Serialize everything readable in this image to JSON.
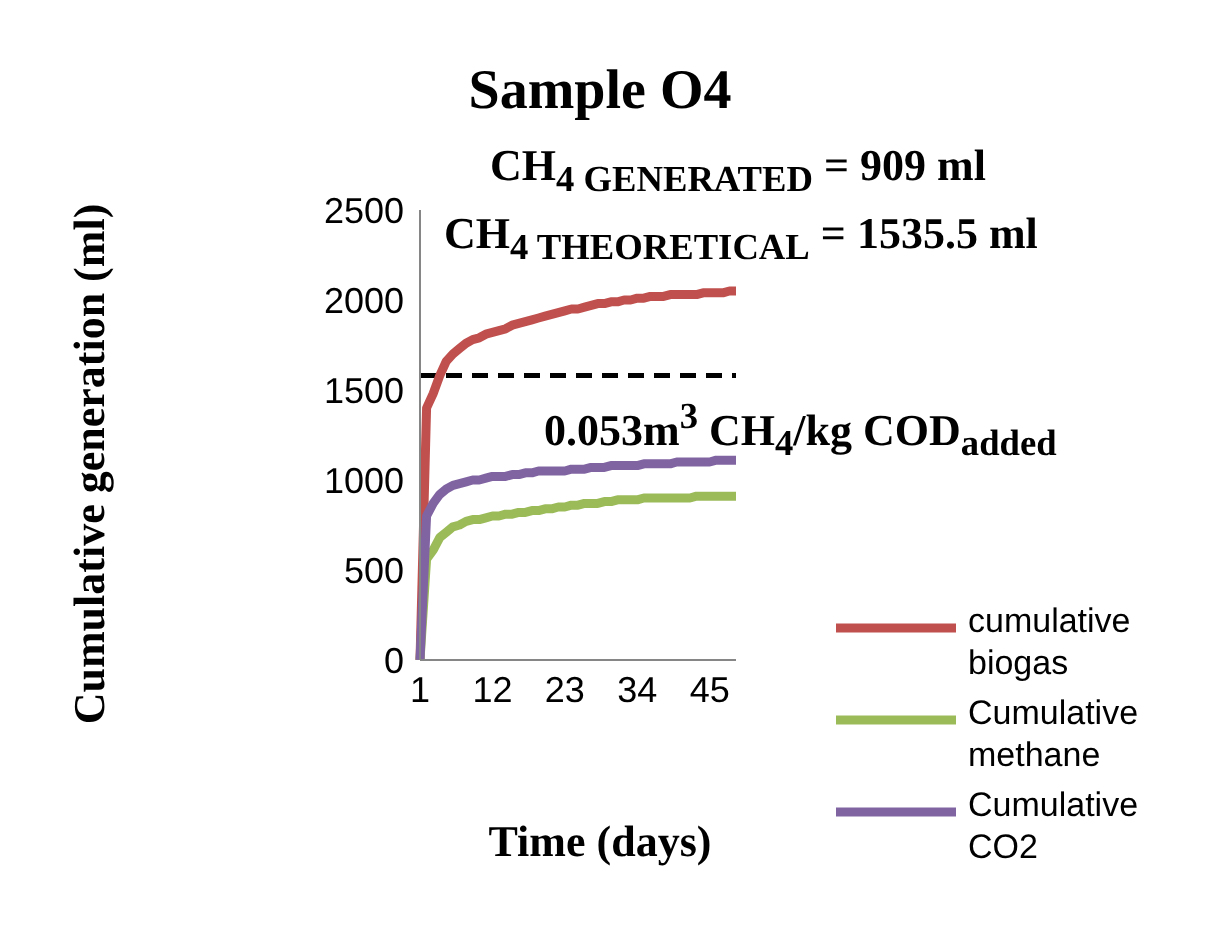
{
  "chart_data": {
    "type": "line",
    "title": "Sample O4",
    "xlabel": "Time (days)",
    "ylabel": "Cumulative generation (ml)",
    "annotations": [
      "CH$_{4 GENERATED}$ = 909 ml",
      "CH$_{4 THEORETICAL}$ = 1535.5 ml",
      "0.053m$^{3}$ CH$_{4}$/kg COD$_{added}$"
    ],
    "categories": [
      "1",
      null,
      null,
      null,
      null,
      null,
      null,
      null,
      null,
      null,
      null,
      "12",
      null,
      null,
      null,
      null,
      null,
      null,
      null,
      null,
      null,
      null,
      "23",
      null,
      null,
      null,
      null,
      null,
      null,
      null,
      null,
      null,
      null,
      "34",
      null,
      null,
      null,
      null,
      null,
      null,
      null,
      null,
      null,
      null,
      "45",
      null,
      null,
      null,
      null
    ],
    "series": [
      {
        "name": "cumulative biogas",
        "color": "#c0504d",
        "values": [
          0,
          1400,
          1480,
          1580,
          1660,
          1700,
          1730,
          1760,
          1780,
          1790,
          1810,
          1820,
          1830,
          1840,
          1860,
          1870,
          1880,
          1890,
          1900,
          1910,
          1920,
          1930,
          1940,
          1950,
          1950,
          1960,
          1970,
          1980,
          1980,
          1990,
          1990,
          2000,
          2000,
          2010,
          2010,
          2020,
          2020,
          2020,
          2030,
          2030,
          2030,
          2030,
          2030,
          2040,
          2040,
          2040,
          2040,
          2050,
          2050
        ]
      },
      {
        "name": "Cumulative methane",
        "color": "#9bbb59",
        "values": [
          0,
          560,
          610,
          680,
          710,
          740,
          750,
          770,
          780,
          780,
          790,
          800,
          800,
          810,
          810,
          820,
          820,
          830,
          830,
          840,
          840,
          850,
          850,
          860,
          860,
          870,
          870,
          870,
          880,
          880,
          890,
          890,
          890,
          890,
          900,
          900,
          900,
          900,
          900,
          900,
          900,
          900,
          910,
          910,
          910,
          910,
          910,
          910,
          910
        ]
      },
      {
        "name": "Cumulative CO2",
        "color": "#8064a2",
        "values": [
          0,
          800,
          870,
          920,
          950,
          970,
          980,
          990,
          1000,
          1000,
          1010,
          1020,
          1020,
          1020,
          1030,
          1030,
          1040,
          1040,
          1050,
          1050,
          1050,
          1050,
          1050,
          1060,
          1060,
          1060,
          1070,
          1070,
          1070,
          1080,
          1080,
          1080,
          1080,
          1080,
          1090,
          1090,
          1090,
          1090,
          1090,
          1100,
          1100,
          1100,
          1100,
          1100,
          1100,
          1110,
          1110,
          1110,
          1110
        ]
      }
    ],
    "ylim": [
      0,
      2500
    ],
    "yticks": [
      0,
      500,
      1000,
      1500,
      2000,
      2500
    ],
    "legend": "right",
    "marker": "none",
    "line_style": "solid",
    "ref_lines": [
      {
        "axis": "y",
        "value": 1580,
        "color": "#000000",
        "line_style": "dashed"
      }
    ]
  }
}
